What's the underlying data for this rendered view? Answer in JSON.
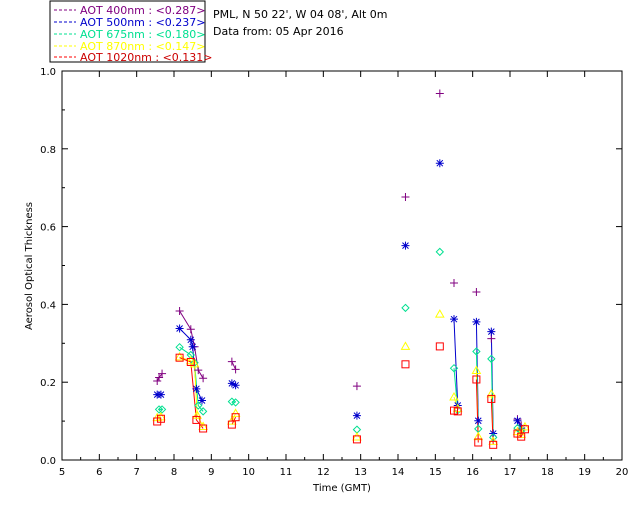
{
  "chart_data": {
    "type": "scatter",
    "xlabel": "Time (GMT)",
    "ylabel": "Aerosol Optical Thickness",
    "xlim": [
      5,
      20
    ],
    "ylim": [
      0.0,
      1.0
    ],
    "x_ticks": [
      "5",
      "6",
      "7",
      "8",
      "9",
      "10",
      "11",
      "12",
      "13",
      "14",
      "15",
      "16",
      "17",
      "18",
      "19",
      "20"
    ],
    "y_ticks": [
      "0.0",
      "0.2",
      "0.4",
      "0.6",
      "0.8",
      "1.0"
    ],
    "info": {
      "location": "PML, N 50 22', W 04 08', Alt 0m",
      "date": "Data from: 05 Apr 2016"
    },
    "series": [
      {
        "name": "AOT 400nm",
        "label": "AOT  400nm : <0.287>",
        "color": "#800080",
        "marker": "plus",
        "points": [
          [
            7.55,
            0.203
          ],
          [
            7.6,
            0.212
          ],
          [
            7.68,
            0.222
          ],
          [
            8.15,
            0.383
          ],
          [
            8.45,
            0.336
          ],
          [
            8.55,
            0.291
          ],
          [
            8.65,
            0.231
          ],
          [
            8.78,
            0.21
          ],
          [
            9.55,
            0.253
          ],
          [
            9.65,
            0.233
          ],
          [
            12.9,
            0.19
          ],
          [
            14.2,
            0.676
          ],
          [
            15.12,
            0.942
          ],
          [
            15.5,
            0.455
          ],
          [
            16.1,
            0.432
          ],
          [
            16.5,
            0.312
          ],
          [
            17.2,
            0.105
          ],
          [
            17.3,
            0.089
          ]
        ]
      },
      {
        "name": "AOT 500nm",
        "label": "AOT  500nm : <0.237>",
        "color": "#0000cc",
        "marker": "asterisk",
        "points": [
          [
            7.55,
            0.168
          ],
          [
            7.65,
            0.168
          ],
          [
            8.15,
            0.338
          ],
          [
            8.45,
            0.309
          ],
          [
            8.5,
            0.291
          ],
          [
            8.6,
            0.183
          ],
          [
            8.75,
            0.153
          ],
          [
            9.55,
            0.197
          ],
          [
            9.65,
            0.192
          ],
          [
            12.9,
            0.114
          ],
          [
            14.2,
            0.551
          ],
          [
            15.12,
            0.763
          ],
          [
            15.5,
            0.362
          ],
          [
            15.6,
            0.14
          ],
          [
            16.1,
            0.355
          ],
          [
            16.15,
            0.101
          ],
          [
            16.5,
            0.33
          ],
          [
            16.55,
            0.068
          ],
          [
            17.2,
            0.101
          ],
          [
            17.3,
            0.082
          ]
        ]
      },
      {
        "name": "AOT 675nm",
        "label": "AOT  675nm : <0.180>",
        "color": "#00e090",
        "marker": "diamond",
        "points": [
          [
            7.6,
            0.13
          ],
          [
            7.68,
            0.13
          ],
          [
            8.15,
            0.29
          ],
          [
            8.45,
            0.27
          ],
          [
            8.55,
            0.25
          ],
          [
            8.65,
            0.14
          ],
          [
            8.78,
            0.125
          ],
          [
            9.55,
            0.15
          ],
          [
            9.65,
            0.148
          ],
          [
            12.9,
            0.078
          ],
          [
            14.2,
            0.391
          ],
          [
            15.12,
            0.535
          ],
          [
            15.5,
            0.236
          ],
          [
            15.6,
            0.128
          ],
          [
            16.1,
            0.279
          ],
          [
            16.15,
            0.08
          ],
          [
            16.5,
            0.26
          ],
          [
            16.55,
            0.058
          ],
          [
            17.2,
            0.082
          ],
          [
            17.3,
            0.075
          ]
        ]
      },
      {
        "name": "AOT 870nm",
        "label": "AOT  870nm : <0.147>",
        "color": "#ffff00",
        "marker": "triangle",
        "points": [
          [
            7.55,
            0.109
          ],
          [
            7.65,
            0.111
          ],
          [
            8.15,
            0.265
          ],
          [
            8.45,
            0.255
          ],
          [
            8.55,
            0.247
          ],
          [
            8.62,
            0.115
          ],
          [
            8.78,
            0.086
          ],
          [
            9.55,
            0.1
          ],
          [
            9.65,
            0.12
          ],
          [
            12.9,
            0.059
          ],
          [
            14.2,
            0.292
          ],
          [
            15.12,
            0.375
          ],
          [
            15.5,
            0.162
          ],
          [
            15.6,
            0.132
          ],
          [
            16.1,
            0.23
          ],
          [
            16.15,
            0.06
          ],
          [
            16.5,
            0.17
          ],
          [
            16.55,
            0.048
          ],
          [
            17.2,
            0.073
          ],
          [
            17.3,
            0.066
          ],
          [
            17.4,
            0.085
          ]
        ]
      },
      {
        "name": "AOT 1020nm",
        "label": "AOT 1020nm : <0.131>",
        "color": "#ff0000",
        "marker": "square",
        "points": [
          [
            7.55,
            0.099
          ],
          [
            7.65,
            0.106
          ],
          [
            8.15,
            0.263
          ],
          [
            8.45,
            0.252
          ],
          [
            8.6,
            0.103
          ],
          [
            8.78,
            0.081
          ],
          [
            9.55,
            0.091
          ],
          [
            9.65,
            0.11
          ],
          [
            12.9,
            0.053
          ],
          [
            14.2,
            0.246
          ],
          [
            15.12,
            0.292
          ],
          [
            15.5,
            0.127
          ],
          [
            15.6,
            0.125
          ],
          [
            16.1,
            0.207
          ],
          [
            16.15,
            0.045
          ],
          [
            16.5,
            0.157
          ],
          [
            16.55,
            0.039
          ],
          [
            17.2,
            0.068
          ],
          [
            17.3,
            0.06
          ],
          [
            17.4,
            0.079
          ]
        ]
      }
    ]
  }
}
